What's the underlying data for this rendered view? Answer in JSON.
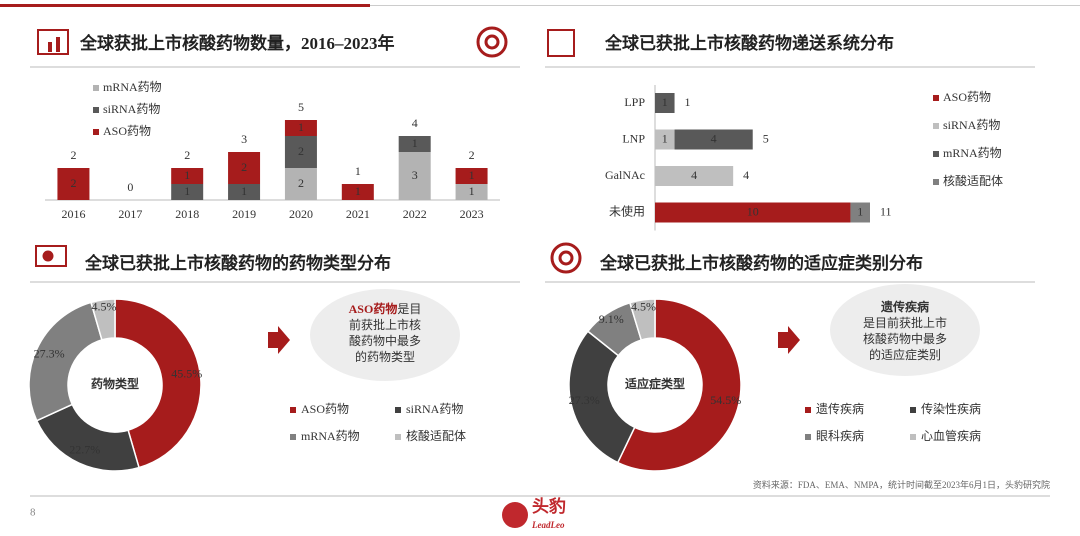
{
  "page": {
    "source": "资料来源：FDA、EMA、NMPA，统计时间截至2023年6月1日，头豹研究院",
    "page_number": "8",
    "logo": {
      "cn": "头豹",
      "en": "LeadLeo"
    },
    "callouts": [
      {
        "highlight": "ASO药物",
        "lines": [
          "是目",
          "前获批上市核",
          "酸药物中最多",
          "的药物类型"
        ]
      },
      {
        "highlight": "遗传疾病",
        "lines": [
          "是目前获批上市",
          "核酸药物中最多",
          "的适应症类别"
        ]
      }
    ]
  },
  "chart_data": [
    {
      "type": "bar",
      "stacked": true,
      "horizontal": false,
      "title": "全球获批上市核酸药物数量，2016–2023年",
      "categories": [
        "2016",
        "2017",
        "2018",
        "2019",
        "2020",
        "2021",
        "2022",
        "2023"
      ],
      "series": [
        {
          "name": "mRNA药物",
          "color": "#b3b3b3",
          "values": [
            0,
            0,
            0,
            0,
            2,
            0,
            3,
            1
          ]
        },
        {
          "name": "siRNA药物",
          "color": "#595959",
          "values": [
            0,
            0,
            1,
            1,
            2,
            0,
            1,
            0
          ]
        },
        {
          "name": "ASO药物",
          "color": "#a61c1c",
          "values": [
            2,
            0,
            1,
            2,
            1,
            1,
            0,
            1
          ]
        }
      ],
      "totals": [
        2,
        0,
        2,
        3,
        5,
        1,
        4,
        2
      ]
    },
    {
      "type": "bar",
      "stacked": true,
      "horizontal": true,
      "title": "全球已获批上市核酸药物递送系统分布",
      "categories": [
        "LPP",
        "LNP",
        "GalNAc",
        "未使用"
      ],
      "series": [
        {
          "name": "ASO药物",
          "color": "#a61c1c",
          "values": [
            0,
            0,
            0,
            10
          ]
        },
        {
          "name": "siRNA药物",
          "color": "#bfbfbf",
          "values": [
            0,
            1,
            4,
            0
          ]
        },
        {
          "name": "mRNA药物",
          "color": "#595959",
          "values": [
            1,
            4,
            0,
            0
          ]
        },
        {
          "name": "核酸适配体",
          "color": "#808080",
          "values": [
            0,
            0,
            0,
            1
          ]
        }
      ],
      "totals": [
        1,
        5,
        4,
        11
      ]
    },
    {
      "type": "pie",
      "title": "全球已获批上市核酸药物的药物类型分布",
      "center_label": "药物类型",
      "categories": [
        "ASO药物",
        "siRNA药物",
        "mRNA药物",
        "核酸适配体"
      ],
      "values": [
        45.5,
        22.7,
        27.3,
        4.5
      ],
      "value_labels": [
        "45.5%",
        "22.7%",
        "27.3%",
        "4.5%"
      ],
      "colors": [
        "#a61c1c",
        "#404040",
        "#808080",
        "#bfbfbf"
      ]
    },
    {
      "type": "pie",
      "title": "全球已获批上市核酸药物的适应症类别分布",
      "center_label": "适应症类型",
      "categories": [
        "遗传疾病",
        "传染性疾病",
        "眼科疾病",
        "心血管疾病"
      ],
      "values": [
        54.5,
        27.3,
        9.1,
        4.5
      ],
      "value_labels": [
        "54.5%",
        "27.3%",
        "9.1%",
        "4.5%"
      ],
      "colors": [
        "#a61c1c",
        "#404040",
        "#808080",
        "#bfbfbf"
      ]
    }
  ]
}
